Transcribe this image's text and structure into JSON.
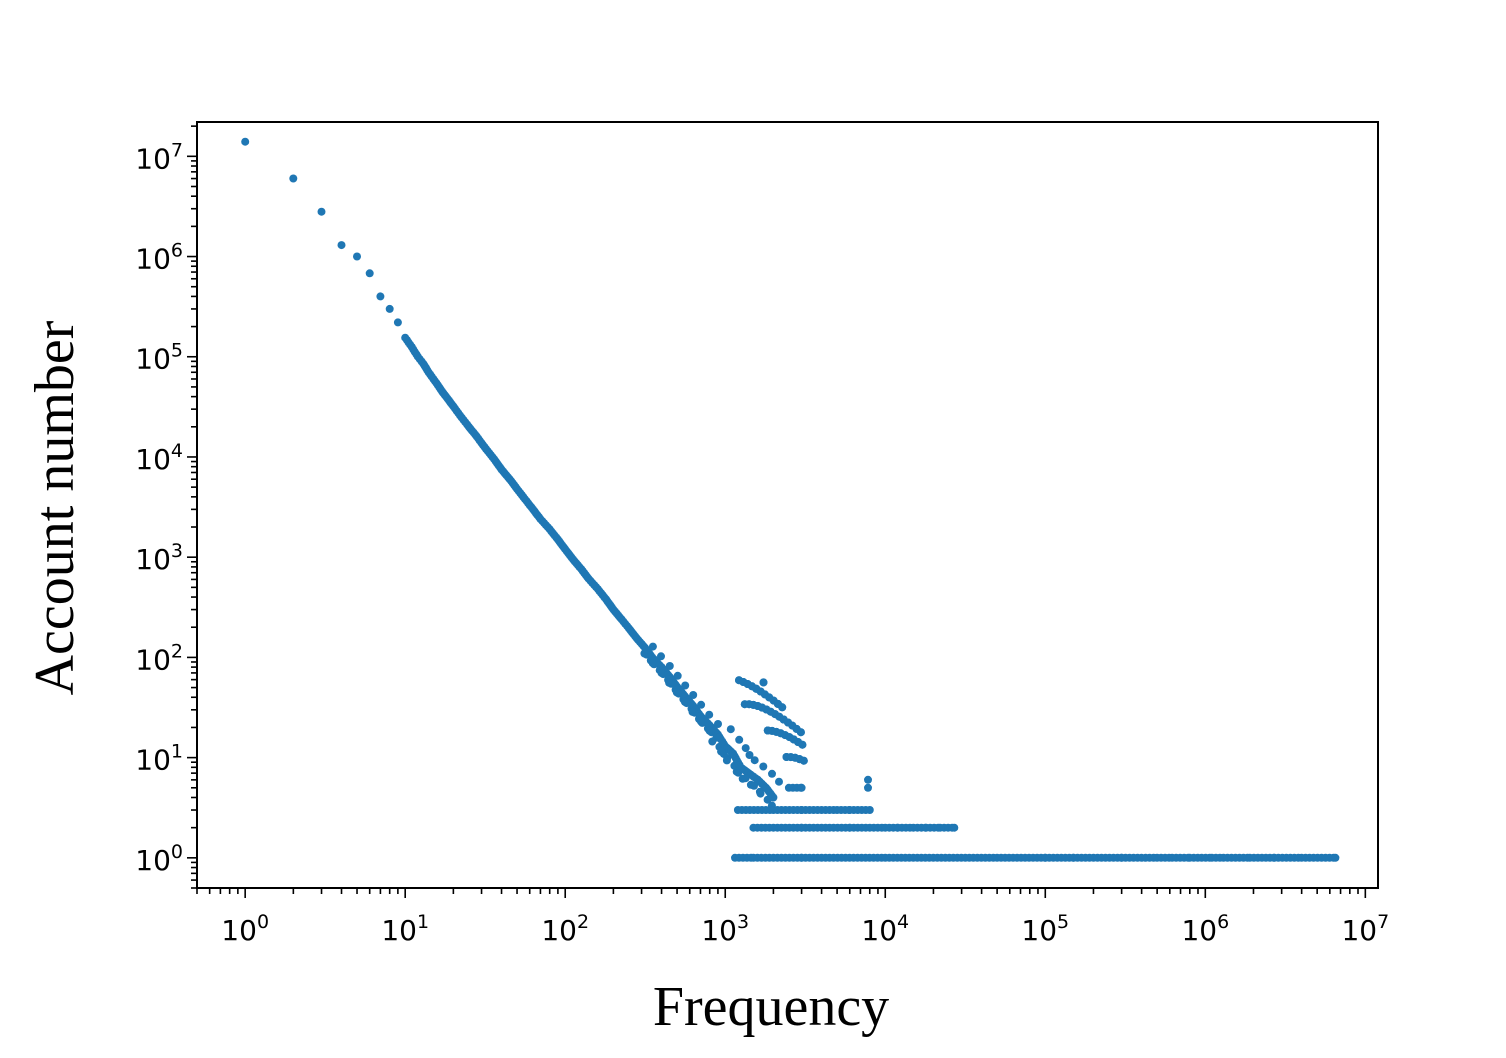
{
  "chart_data": {
    "type": "scatter",
    "title": "",
    "xlabel": "Frequency",
    "ylabel": "Account number",
    "xscale": "log",
    "yscale": "log",
    "xlim": [
      0.5,
      12000000
    ],
    "ylim": [
      0.5,
      22000000
    ],
    "grid": false,
    "legend": "none",
    "marker_color": "#1f77b4",
    "x_tick_labels": [
      {
        "base": "10",
        "exp": "0",
        "value": 1
      },
      {
        "base": "10",
        "exp": "1",
        "value": 10
      },
      {
        "base": "10",
        "exp": "2",
        "value": 100
      },
      {
        "base": "10",
        "exp": "3",
        "value": 1000
      },
      {
        "base": "10",
        "exp": "4",
        "value": 10000
      },
      {
        "base": "10",
        "exp": "5",
        "value": 100000
      },
      {
        "base": "10",
        "exp": "6",
        "value": 1000000
      },
      {
        "base": "10",
        "exp": "7",
        "value": 10000000
      }
    ],
    "y_tick_labels": [
      {
        "base": "10",
        "exp": "0",
        "value": 1
      },
      {
        "base": "10",
        "exp": "1",
        "value": 10
      },
      {
        "base": "10",
        "exp": "2",
        "value": 100
      },
      {
        "base": "10",
        "exp": "3",
        "value": 1000
      },
      {
        "base": "10",
        "exp": "4",
        "value": 10000
      },
      {
        "base": "10",
        "exp": "5",
        "value": 100000
      },
      {
        "base": "10",
        "exp": "6",
        "value": 1000000
      },
      {
        "base": "10",
        "exp": "7",
        "value": 10000000
      }
    ],
    "points": [
      [
        1,
        14000000
      ],
      [
        2,
        6000000
      ],
      [
        3,
        2800000
      ],
      [
        4,
        1300000
      ],
      [
        5,
        1000000
      ],
      [
        6,
        680000
      ],
      [
        7,
        400000
      ],
      [
        8,
        300000
      ],
      [
        9,
        220000
      ],
      [
        10,
        155000
      ],
      [
        11,
        125000
      ],
      [
        12,
        100000
      ],
      [
        13,
        85000
      ],
      [
        14,
        70000
      ],
      [
        15,
        60000
      ],
      [
        16,
        52000
      ],
      [
        17,
        45000
      ],
      [
        18,
        40000
      ],
      [
        20,
        32000
      ],
      [
        22,
        26000
      ],
      [
        25,
        20000
      ],
      [
        28,
        16000
      ],
      [
        32,
        12000
      ],
      [
        36,
        9500
      ],
      [
        40,
        7500
      ],
      [
        45,
        6000
      ],
      [
        50,
        4800
      ],
      [
        56,
        3800
      ],
      [
        63,
        3000
      ],
      [
        70,
        2400
      ],
      [
        80,
        1900
      ],
      [
        90,
        1500
      ],
      [
        100,
        1200
      ],
      [
        112,
        950
      ],
      [
        126,
        760
      ],
      [
        140,
        610
      ],
      [
        160,
        480
      ],
      [
        180,
        380
      ],
      [
        200,
        300
      ],
      [
        225,
        240
      ],
      [
        250,
        195
      ],
      [
        280,
        155
      ],
      [
        315,
        125
      ],
      [
        350,
        100
      ],
      [
        400,
        80
      ],
      [
        450,
        64
      ],
      [
        500,
        51
      ],
      [
        560,
        41
      ],
      [
        630,
        33
      ],
      [
        700,
        26
      ],
      [
        800,
        21
      ],
      [
        900,
        17
      ],
      [
        1000,
        13
      ],
      [
        1120,
        11
      ],
      [
        1250,
        8
      ],
      [
        1400,
        7
      ],
      [
        1600,
        6
      ],
      [
        1800,
        5
      ],
      [
        2000,
        4
      ],
      [
        2500,
        5
      ],
      [
        3000,
        5
      ],
      [
        7800,
        6
      ],
      [
        7800,
        5
      ],
      [
        1200,
        3
      ],
      [
        2000,
        3
      ],
      [
        3000,
        3
      ],
      [
        4000,
        3
      ],
      [
        5000,
        3
      ],
      [
        6000,
        3
      ],
      [
        8000,
        3
      ],
      [
        1500,
        2
      ],
      [
        3000,
        2
      ],
      [
        6000,
        2
      ],
      [
        10000,
        2
      ],
      [
        12000,
        2
      ],
      [
        15000,
        2
      ],
      [
        18000,
        2
      ],
      [
        22000,
        2
      ],
      [
        27000,
        2
      ],
      [
        1150,
        1
      ],
      [
        1500,
        1
      ],
      [
        3000,
        1
      ],
      [
        10000,
        1
      ],
      [
        50000,
        1
      ],
      [
        100000,
        1
      ],
      [
        150000,
        1
      ],
      [
        200000,
        1
      ],
      [
        300000,
        1
      ],
      [
        400000,
        1
      ],
      [
        500000,
        1
      ],
      [
        620000,
        1
      ],
      [
        800000,
        1
      ],
      [
        950000,
        1
      ],
      [
        1100000,
        1
      ],
      [
        1300000,
        1
      ],
      [
        1900000,
        1
      ],
      [
        2700000,
        1
      ],
      [
        4000000,
        1
      ],
      [
        6500000,
        1
      ]
    ]
  }
}
